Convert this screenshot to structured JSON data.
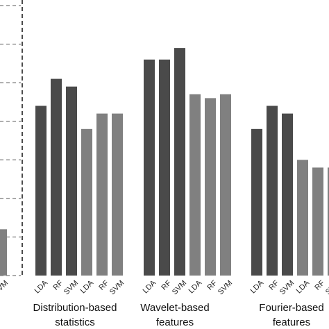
{
  "chart_data": {
    "type": "bar",
    "ylim": [
      0,
      7
    ],
    "yticks": [
      0,
      1,
      2,
      3,
      4,
      5,
      6,
      7
    ],
    "groups": [
      {
        "categories": [
          "SVM"
        ],
        "values": [
          1.2
        ],
        "colors": [
          "#808080"
        ]
      },
      {
        "label": [
          "Distribution-based",
          "statistics"
        ],
        "categories": [
          "LDA",
          "RF",
          "SVM",
          "LDA",
          "RF",
          "SVM"
        ],
        "values": [
          4.4,
          5.1,
          4.9,
          3.8,
          4.2,
          4.2
        ],
        "colors": [
          "#4a4a4a",
          "#4a4a4a",
          "#4a4a4a",
          "#808080",
          "#808080",
          "#808080"
        ]
      },
      {
        "label": [
          "Wavelet-based",
          "features"
        ],
        "categories": [
          "LDA",
          "RF",
          "SVM",
          "LDA",
          "RF",
          "SVM"
        ],
        "values": [
          5.6,
          5.6,
          5.9,
          4.7,
          4.6,
          4.7
        ],
        "colors": [
          "#4a4a4a",
          "#4a4a4a",
          "#4a4a4a",
          "#808080",
          "#808080",
          "#808080"
        ]
      },
      {
        "label": [
          "Fourier-based",
          "features"
        ],
        "categories": [
          "LDA",
          "RF",
          "SVM",
          "LDA",
          "RF",
          "SVM"
        ],
        "values": [
          3.8,
          4.4,
          4.2,
          3.0,
          2.8,
          2.8
        ],
        "colors": [
          "#4a4a4a",
          "#4a4a4a",
          "#4a4a4a",
          "#808080",
          "#808080",
          "#808080"
        ]
      }
    ]
  }
}
